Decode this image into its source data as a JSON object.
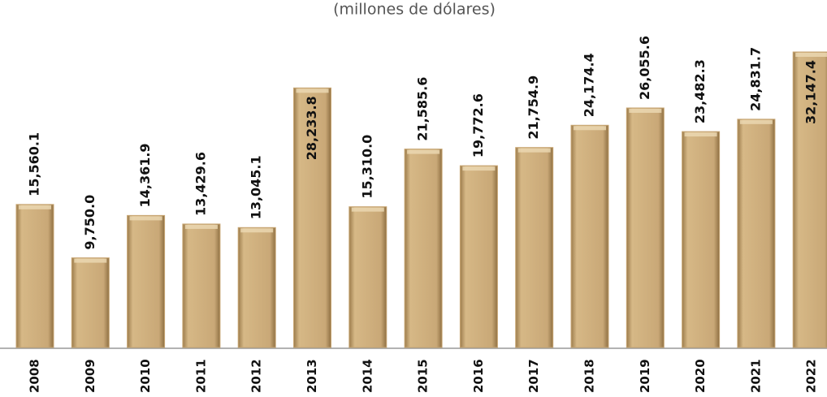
{
  "chart_data": {
    "type": "bar",
    "title": "(millones de dólares)",
    "categories": [
      "2008",
      "2009",
      "2010",
      "2011",
      "2012",
      "2013",
      "2014",
      "2015",
      "2016",
      "2017",
      "2018",
      "2019",
      "2020",
      "2021",
      "2022"
    ],
    "values": [
      15560.1,
      9750.0,
      14361.9,
      13429.6,
      13045.1,
      28233.8,
      15310.0,
      21585.6,
      19772.6,
      21754.9,
      24174.4,
      26055.6,
      23482.3,
      24831.7,
      32147.4
    ],
    "value_labels": [
      "15,560.1",
      "9,750.0",
      "14,361.9",
      "13,429.6",
      "13,045.1",
      "28,233.8",
      "15,310.0",
      "21,585.6",
      "19,772.6",
      "21,754.9",
      "24,174.4",
      "26,055.6",
      "23,482.3",
      "24,831.7",
      "32,147.4"
    ],
    "color": "#c8a673"
  }
}
